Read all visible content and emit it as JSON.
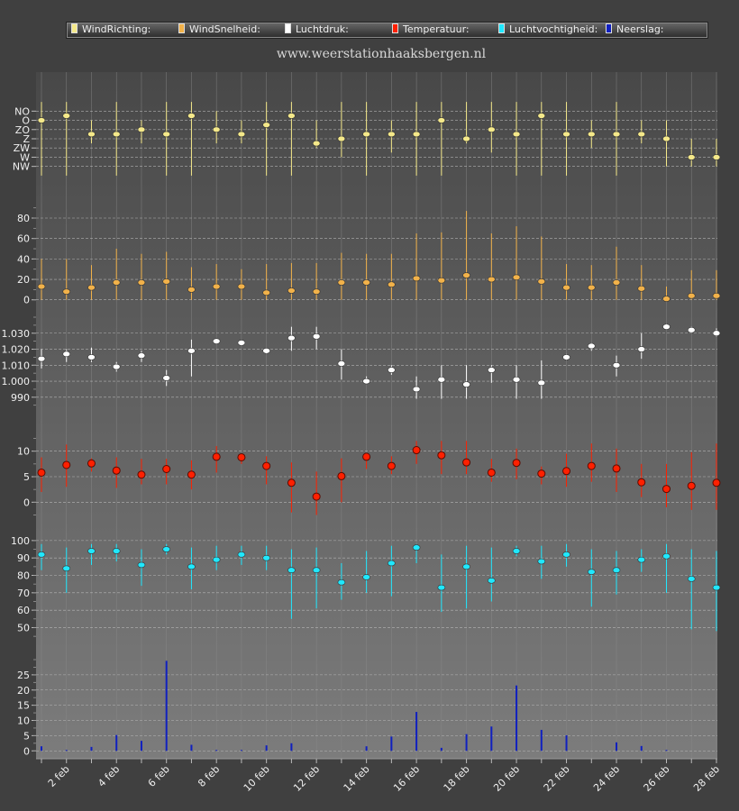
{
  "site_title": "www.weerstationhaaksbergen.nl",
  "legend": [
    {
      "label": "WindRichting:",
      "color": "#f5e98a"
    },
    {
      "label": "WindSnelheid:",
      "color": "#f2b24a"
    },
    {
      "label": "Luchtdruk:",
      "color": "#ffffff"
    },
    {
      "label": "Temperatuur:",
      "color": "#ff2000"
    },
    {
      "label": "Luchtvochtigheid:",
      "color": "#20e8ff"
    },
    {
      "label": "Neerslag:",
      "color": "#1020c0"
    }
  ],
  "x_tick_labels": [
    "2 feb",
    "4 feb",
    "6 feb",
    "8 feb",
    "10 feb",
    "12 feb",
    "14 feb",
    "16 feb",
    "18 feb",
    "20 feb",
    "22 feb",
    "24 feb",
    "26 feb",
    "28 feb"
  ],
  "chart_data": [
    {
      "type": "scatter",
      "name": "WindRichting",
      "color": "#f5e98a",
      "y_categories": [
        "NO",
        "O",
        "ZO",
        "Z",
        "ZW",
        "W",
        "NW"
      ],
      "y_tick_labels": [
        "NW",
        "W",
        "ZW",
        "Z",
        "ZO",
        "O",
        "NO"
      ],
      "x": [
        1,
        2,
        3,
        4,
        5,
        6,
        7,
        8,
        9,
        10,
        11,
        12,
        13,
        14,
        15,
        16,
        17,
        18,
        19,
        20,
        21,
        22,
        23,
        24,
        25,
        26,
        27,
        28
      ],
      "values": [
        5.0,
        5.5,
        3.5,
        3.5,
        4.0,
        3.5,
        5.5,
        4.0,
        3.5,
        4.5,
        5.5,
        2.5,
        3.0,
        3.5,
        3.5,
        3.5,
        5.0,
        3.0,
        4.0,
        3.5,
        5.5,
        3.5,
        3.5,
        3.5,
        3.5,
        3.0,
        1.0,
        1.0
      ],
      "min": [
        -1.0,
        -1.0,
        2.5,
        -1.0,
        2.5,
        -1.0,
        -1.0,
        2.5,
        2.5,
        -1.0,
        -1.0,
        2.0,
        1.0,
        -1.0,
        1.5,
        -1.0,
        -1.0,
        2.5,
        1.5,
        -1.0,
        -1.0,
        -1.0,
        2.0,
        -1.0,
        2.5,
        0.0,
        0.0,
        0.0
      ],
      "max": [
        7.0,
        7.0,
        5.0,
        7.0,
        5.0,
        7.0,
        7.0,
        6.0,
        5.0,
        7.0,
        7.0,
        5.0,
        7.0,
        7.0,
        5.0,
        7.0,
        7.0,
        7.0,
        7.0,
        7.0,
        7.0,
        7.0,
        5.0,
        7.0,
        5.0,
        5.0,
        3.0,
        3.0
      ],
      "ylim": [
        -1.5,
        7.5
      ]
    },
    {
      "type": "scatter",
      "name": "WindSnelheid",
      "color": "#f2b24a",
      "y_tick_labels": [
        "0",
        "20",
        "40",
        "60",
        "80"
      ],
      "x": [
        1,
        2,
        3,
        4,
        5,
        6,
        7,
        8,
        9,
        10,
        11,
        12,
        13,
        14,
        15,
        16,
        17,
        18,
        19,
        20,
        21,
        22,
        23,
        24,
        25,
        26,
        27,
        28
      ],
      "values": [
        13,
        8,
        12,
        17,
        17,
        18,
        10,
        13,
        13,
        7,
        9,
        8,
        17,
        17,
        15,
        21,
        19,
        24,
        20,
        22,
        18,
        12,
        12,
        17,
        11,
        1,
        4,
        4
      ],
      "min": [
        0,
        0,
        0,
        0,
        0,
        0,
        0,
        0,
        0,
        0,
        0,
        0,
        0,
        0,
        0,
        0,
        0,
        0,
        0,
        0,
        0,
        0,
        0,
        0,
        0,
        0,
        0,
        0
      ],
      "max": [
        40,
        40,
        34,
        50,
        45,
        47,
        32,
        35,
        30,
        35,
        36,
        36,
        46,
        45,
        45,
        65,
        66,
        87,
        65,
        72,
        62,
        35,
        34,
        52,
        34,
        13,
        29,
        29
      ],
      "ylim": [
        -2,
        95
      ]
    },
    {
      "type": "scatter",
      "name": "Luchtdruk",
      "color": "#ffffff",
      "y_tick_labels": [
        "990",
        "1.000",
        "1.010",
        "1.020",
        "1.030"
      ],
      "x": [
        1,
        2,
        3,
        4,
        5,
        6,
        7,
        8,
        9,
        10,
        11,
        12,
        13,
        14,
        15,
        16,
        17,
        18,
        19,
        20,
        21,
        22,
        23,
        24,
        25,
        26,
        27,
        28
      ],
      "values": [
        1014,
        1017,
        1015,
        1009,
        1016,
        1002,
        1019,
        1025,
        1024,
        1019,
        1027,
        1028,
        1011,
        1000,
        1007,
        995,
        1001,
        998,
        1007,
        1001,
        999,
        1015,
        1022,
        1010,
        1020,
        1034,
        1032,
        1030
      ],
      "min": [
        1008,
        1012,
        1012,
        1006,
        1012,
        997,
        1003,
        1024,
        1022,
        1017,
        1019,
        1020,
        1001,
        999,
        1004,
        989,
        989,
        989,
        999,
        989,
        989,
        1013,
        1019,
        1003,
        1014,
        1033,
        1031,
        1028
      ],
      "max": [
        1020,
        1020,
        1021,
        1012,
        1019,
        1007,
        1026,
        1026,
        1025,
        1020,
        1034,
        1034,
        1020,
        1003,
        1010,
        1003,
        1010,
        1010,
        1010,
        1010,
        1013,
        1017,
        1024,
        1016,
        1030,
        1036,
        1034,
        1033
      ],
      "ylim": [
        982,
        1040
      ]
    },
    {
      "type": "scatter",
      "name": "Temperatuur",
      "color": "#ff2000",
      "y_tick_labels": [
        "0",
        "5",
        "10"
      ],
      "x": [
        1,
        2,
        3,
        4,
        5,
        6,
        7,
        8,
        9,
        10,
        11,
        12,
        13,
        14,
        15,
        16,
        17,
        18,
        19,
        20,
        21,
        22,
        23,
        24,
        25,
        26,
        27,
        28
      ],
      "values": [
        5.8,
        7.3,
        7.6,
        6.2,
        5.4,
        6.5,
        5.4,
        8.9,
        8.8,
        7.1,
        3.8,
        1.1,
        5.1,
        8.9,
        7.1,
        10.2,
        9.2,
        7.8,
        5.8,
        7.7,
        5.6,
        6.1,
        7.1,
        6.6,
        3.9,
        2.6,
        3.2,
        3.8
      ],
      "min": [
        2.0,
        3.0,
        6.0,
        2.8,
        3.5,
        3.5,
        2.5,
        5.8,
        7.5,
        3.5,
        -2.0,
        -2.5,
        0.0,
        6.5,
        5.5,
        7.5,
        5.5,
        5.5,
        4.0,
        4.5,
        3.5,
        3.0,
        4.0,
        2.0,
        1.0,
        -1.0,
        -1.5,
        -1.5
      ],
      "max": [
        8.8,
        11.3,
        8.6,
        8.8,
        8.5,
        8.5,
        8.2,
        11.0,
        9.5,
        9.0,
        7.8,
        6.0,
        8.6,
        9.5,
        9.0,
        12.0,
        12.0,
        12.0,
        8.5,
        10.5,
        7.0,
        9.5,
        11.5,
        10.5,
        7.5,
        7.5,
        9.8,
        11.5
      ],
      "ylim": [
        -4,
        14
      ]
    },
    {
      "type": "scatter",
      "name": "Luchtvochtigheid",
      "color": "#20e8ff",
      "y_tick_labels": [
        "50",
        "60",
        "70",
        "80",
        "90",
        "100"
      ],
      "x": [
        1,
        2,
        3,
        4,
        5,
        6,
        7,
        8,
        9,
        10,
        11,
        12,
        13,
        14,
        15,
        16,
        17,
        18,
        19,
        20,
        21,
        22,
        23,
        24,
        25,
        26,
        27,
        28
      ],
      "values": [
        92,
        84,
        94,
        94,
        86,
        95,
        85,
        89,
        92,
        90,
        83,
        83,
        76,
        79,
        87,
        96,
        73,
        85,
        77,
        94,
        88,
        92,
        82,
        83,
        89,
        91,
        78,
        73
      ],
      "min": [
        83,
        70,
        86,
        88,
        74,
        92,
        72,
        83,
        86,
        83,
        55,
        61,
        66,
        70,
        68,
        87,
        59,
        61,
        65,
        91,
        78,
        85,
        62,
        69,
        82,
        70,
        49,
        48
      ],
      "max": [
        98,
        96,
        98,
        98,
        95,
        98,
        96,
        97,
        97,
        97,
        95,
        96,
        87,
        94,
        97,
        98,
        92,
        97,
        96,
        97,
        97,
        98,
        95,
        94,
        95,
        98,
        95,
        94
      ],
      "ylim": [
        43,
        102
      ]
    },
    {
      "type": "bar",
      "name": "Neerslag",
      "color": "#1020c0",
      "y_tick_labels": [
        "0",
        "5",
        "10",
        "15",
        "20",
        "25"
      ],
      "x": [
        1,
        2,
        3,
        4,
        5,
        6,
        7,
        8,
        9,
        10,
        11,
        12,
        13,
        14,
        15,
        16,
        17,
        18,
        19,
        20,
        21,
        22,
        23,
        24,
        25,
        26,
        27,
        28
      ],
      "values": [
        1.5,
        0.3,
        1.3,
        5.2,
        3.3,
        29.6,
        2.0,
        0.3,
        0.3,
        1.8,
        2.5,
        0,
        0,
        1.5,
        4.7,
        12.8,
        1.0,
        5.5,
        8.0,
        21.5,
        6.9,
        5.1,
        0,
        2.8,
        1.6,
        0.3,
        0,
        0
      ],
      "ylim": [
        -2,
        30
      ]
    }
  ]
}
